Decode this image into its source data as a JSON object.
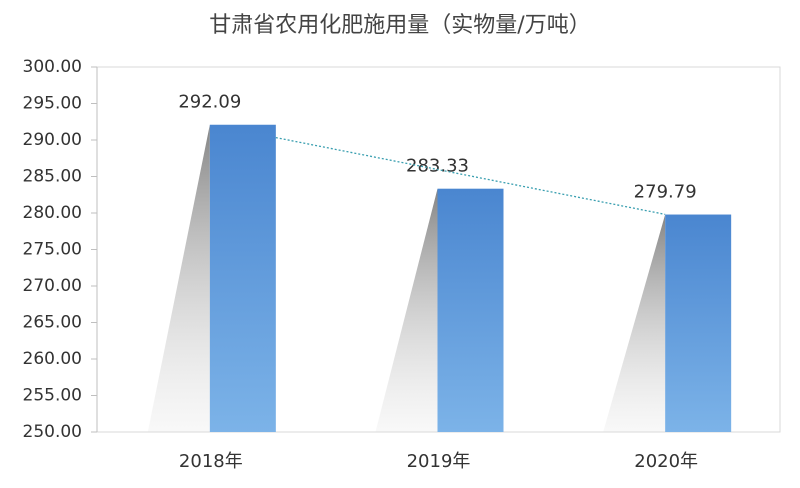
{
  "chart_data": {
    "type": "bar",
    "title": "甘肃省农用化肥施用量（实物量/万吨）",
    "categories": [
      "2018年",
      "2019年",
      "2020年"
    ],
    "values": [
      292.09,
      283.33,
      279.79
    ],
    "color": "#4f8bd4",
    "ylim": [
      250,
      300
    ],
    "yticks": [
      {
        "value": 250,
        "label": "250.00"
      },
      {
        "value": 255,
        "label": "255.00"
      },
      {
        "value": 260,
        "label": "260.00"
      },
      {
        "value": 265,
        "label": "265.00"
      },
      {
        "value": 270,
        "label": "270.00"
      },
      {
        "value": 275,
        "label": "275.00"
      },
      {
        "value": 280,
        "label": "280.00"
      },
      {
        "value": 285,
        "label": "285.00"
      },
      {
        "value": 290,
        "label": "290.00"
      },
      {
        "value": 295,
        "label": "295.00"
      },
      {
        "value": 300,
        "label": "300.00"
      }
    ],
    "grid": false,
    "trendline": true
  }
}
